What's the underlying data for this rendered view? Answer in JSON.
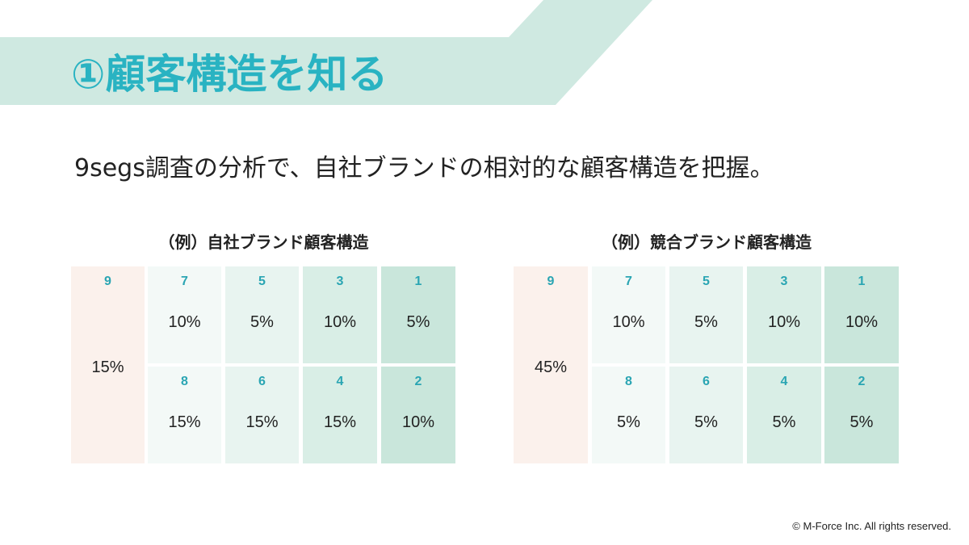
{
  "header": {
    "title": "①顧客構造を知る"
  },
  "lead": "9segs調査の分析で、自社ブランドの相対的な顧客構造を把握。",
  "panels": [
    {
      "title": "（例）自社ブランド顧客構造",
      "segments": {
        "s9": {
          "num": "9",
          "pct": "15%"
        },
        "s7": {
          "num": "7",
          "pct": "10%"
        },
        "s5": {
          "num": "5",
          "pct": "5%"
        },
        "s3": {
          "num": "3",
          "pct": "10%"
        },
        "s1": {
          "num": "1",
          "pct": "5%"
        },
        "s8": {
          "num": "8",
          "pct": "15%"
        },
        "s6": {
          "num": "6",
          "pct": "15%"
        },
        "s4": {
          "num": "4",
          "pct": "15%"
        },
        "s2": {
          "num": "2",
          "pct": "10%"
        }
      }
    },
    {
      "title": "（例）競合ブランド顧客構造",
      "segments": {
        "s9": {
          "num": "9",
          "pct": "45%"
        },
        "s7": {
          "num": "7",
          "pct": "10%"
        },
        "s5": {
          "num": "5",
          "pct": "5%"
        },
        "s3": {
          "num": "3",
          "pct": "10%"
        },
        "s1": {
          "num": "1",
          "pct": "10%"
        },
        "s8": {
          "num": "8",
          "pct": "5%"
        },
        "s6": {
          "num": "6",
          "pct": "5%"
        },
        "s4": {
          "num": "4",
          "pct": "5%"
        },
        "s2": {
          "num": "2",
          "pct": "5%"
        }
      }
    }
  ],
  "colors": {
    "banner": "#cfe9e1",
    "title": "#29b3c2",
    "seg9": "#fbf1ec",
    "col7_8": "#f3f9f7",
    "col5_6": "#e8f4f0",
    "col3_4": "#d9eee6",
    "col1_2": "#c9e6db",
    "number": "#2aa5b3"
  },
  "footer": {
    "copyright": "© M-Force Inc. All rights reserved."
  }
}
